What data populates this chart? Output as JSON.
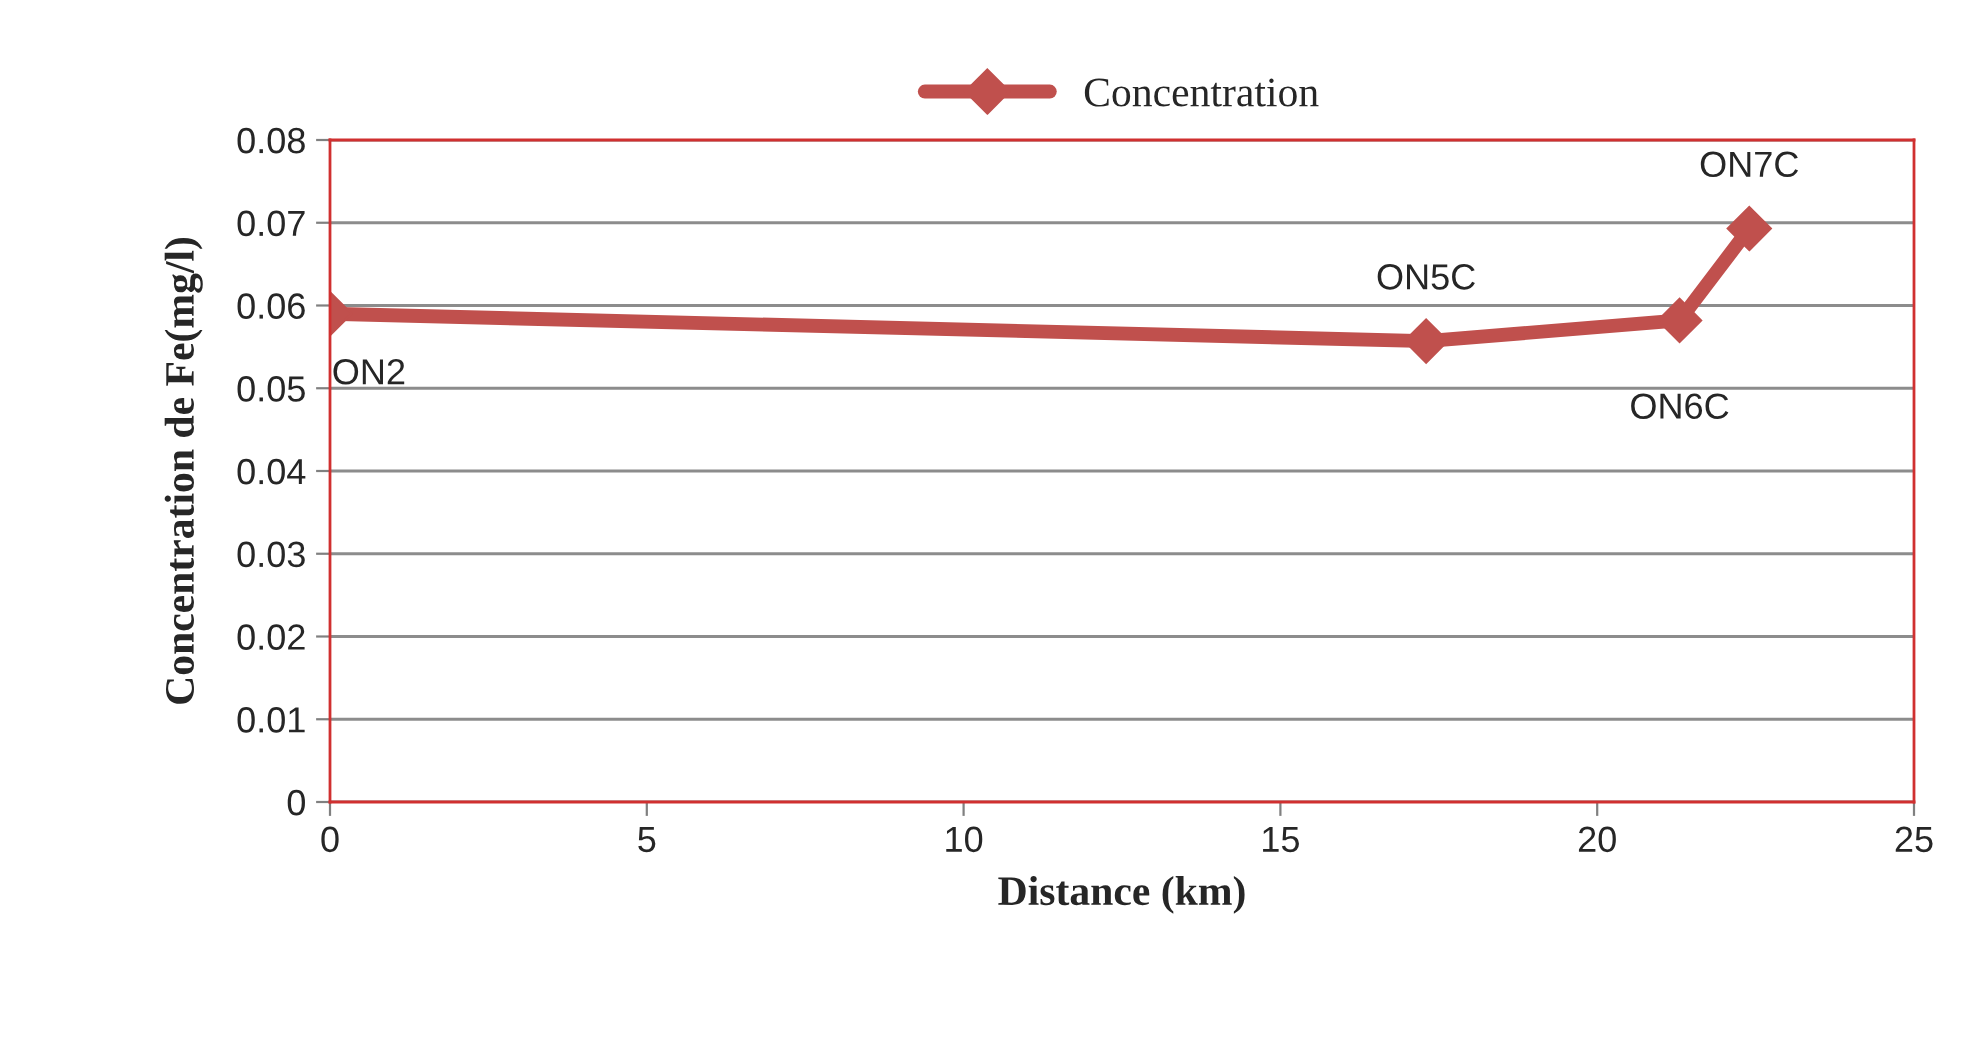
{
  "chart_data": {
    "type": "line",
    "xlabel": "Distance (km)",
    "ylabel": "Concentration de Fe(mg/l)",
    "x": [
      0,
      17.3,
      21.3,
      22.4
    ],
    "series": [
      {
        "name": "Concentration",
        "color": "#c0504d",
        "values": [
          0.059,
          0.0557,
          0.0582,
          0.0693
        ]
      }
    ],
    "annotations": [
      {
        "text": "ON2",
        "x": 0,
        "y": 0.059
      },
      {
        "text": "ON5C",
        "x": 17.3,
        "y": 0.0557
      },
      {
        "text": "ON6C",
        "x": 21.3,
        "y": 0.0582
      },
      {
        "text": "ON7C",
        "x": 22.4,
        "y": 0.0693
      }
    ],
    "xlim": [
      0,
      25
    ],
    "xticks": [
      0,
      5,
      10,
      15,
      20,
      25
    ],
    "ylim": [
      0,
      0.08
    ],
    "yticks": [
      {
        "value": 0,
        "label": "0"
      },
      {
        "value": 0.01,
        "label": "0.01"
      },
      {
        "value": 0.02,
        "label": "0.02"
      },
      {
        "value": 0.03,
        "label": "0.03"
      },
      {
        "value": 0.04,
        "label": "0.04"
      },
      {
        "value": 0.05,
        "label": "0.05"
      },
      {
        "value": 0.06,
        "label": "0.06"
      },
      {
        "value": 0.07,
        "label": "0.07"
      },
      {
        "value": 0.08,
        "label": "0.08"
      }
    ],
    "grid": "y",
    "legend": "top",
    "marker": "diamond",
    "line_style": "solid"
  }
}
